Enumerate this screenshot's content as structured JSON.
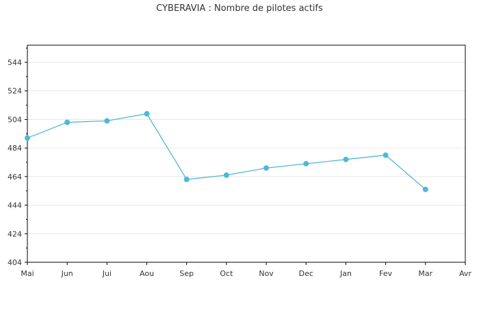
{
  "colors": {
    "line": "#4fb8d9",
    "marker": "#4fb8d9",
    "grid": "#e6e6e6",
    "axis": "#000000",
    "text": "#333333"
  },
  "chart_data": {
    "type": "line",
    "title": "CYBERAVIA : Nombre de pilotes actifs",
    "xlabel": "",
    "ylabel": "",
    "categories": [
      "Mai",
      "Jun",
      "Jui",
      "Aou",
      "Sep",
      "Oct",
      "Nov",
      "Dec",
      "Jan",
      "Fev",
      "Mar",
      "Avr"
    ],
    "series": [
      {
        "values": [
          491,
          502,
          503,
          508,
          462,
          465,
          470,
          473,
          476,
          479,
          455,
          null
        ]
      }
    ],
    "ylim": [
      404,
      556
    ],
    "yticks": [
      404,
      424,
      444,
      464,
      484,
      504,
      524,
      544
    ],
    "grid": true,
    "legend": "none"
  }
}
